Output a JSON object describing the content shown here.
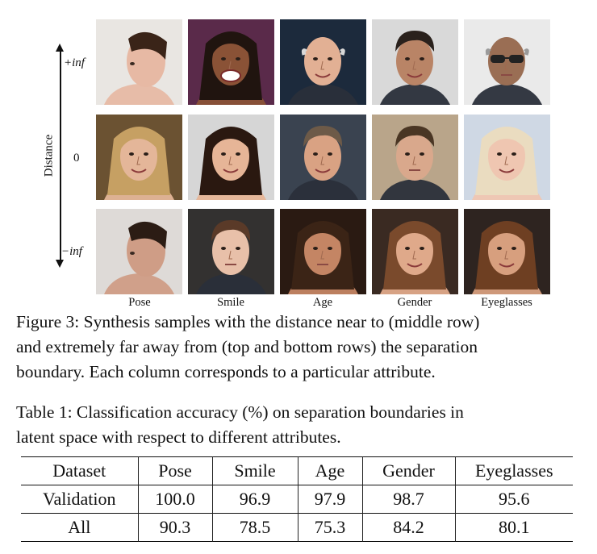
{
  "figure": {
    "axis_label": "Distance",
    "row_labels": {
      "top": "+inf",
      "middle": "0",
      "bottom": "−inf"
    },
    "columns": [
      "Pose",
      "Smile",
      "Age",
      "Gender",
      "Eyeglasses"
    ]
  },
  "figure_caption": {
    "lines": [
      "Figure 3: Synthesis samples with the distance near to (middle row)",
      "and extremely far away from (top and bottom rows) the separation",
      "boundary. Each column corresponds to a particular attribute."
    ]
  },
  "table_caption": {
    "lines": [
      "Table 1: Classification accuracy (%) on separation boundaries in",
      "latent space with respect to different attributes."
    ]
  },
  "table": {
    "headers": [
      "Dataset",
      "Pose",
      "Smile",
      "Age",
      "Gender",
      "Eyeglasses"
    ],
    "rows": [
      [
        "Validation",
        "100.0",
        "96.9",
        "97.9",
        "98.7",
        "95.6"
      ],
      [
        "All",
        "90.3",
        "78.5",
        "75.3",
        "84.2",
        "80.1"
      ]
    ]
  },
  "colors": {
    "text": "#111111",
    "background": "#ffffff"
  }
}
